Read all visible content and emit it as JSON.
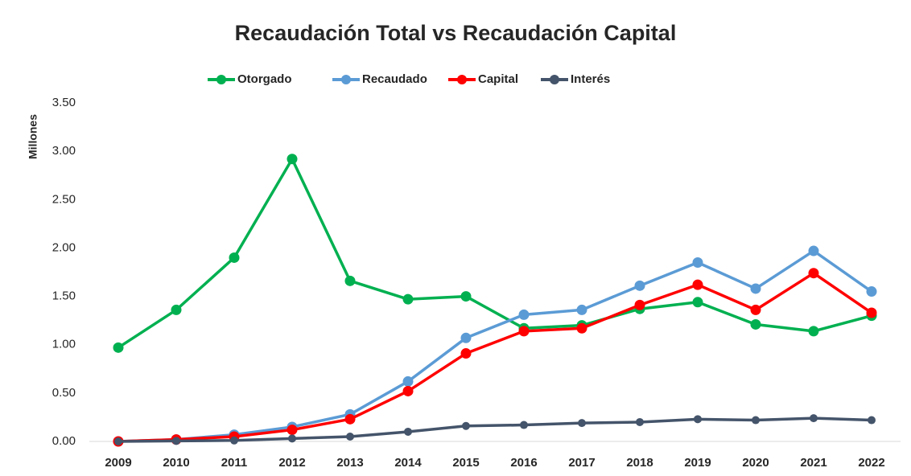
{
  "chart_data": {
    "type": "line",
    "title": "Recaudación Total vs Recaudación Capital",
    "y_label": "Millones",
    "categories": [
      "2009",
      "2010",
      "2011",
      "2012",
      "2013",
      "2014",
      "2015",
      "2016",
      "2017",
      "2018",
      "2019",
      "2020",
      "2021",
      "2022"
    ],
    "series": [
      {
        "name": "Otorgado",
        "color": "#00b050",
        "values": [
          0.97,
          1.36,
          1.9,
          2.92,
          1.66,
          1.47,
          1.5,
          1.17,
          1.2,
          1.37,
          1.44,
          1.21,
          1.14,
          1.3
        ]
      },
      {
        "name": "Recaudado",
        "color": "#5b9bd5",
        "values": [
          0.0,
          0.02,
          0.07,
          0.15,
          0.28,
          0.62,
          1.07,
          1.31,
          1.36,
          1.61,
          1.85,
          1.58,
          1.97,
          1.55
        ]
      },
      {
        "name": "Capital",
        "color": "#ff0000",
        "values": [
          0.0,
          0.02,
          0.05,
          0.12,
          0.23,
          0.52,
          0.91,
          1.14,
          1.17,
          1.41,
          1.62,
          1.36,
          1.74,
          1.33
        ]
      },
      {
        "name": "Interés",
        "color": "#44546a",
        "values": [
          0.0,
          0.005,
          0.01,
          0.03,
          0.05,
          0.1,
          0.16,
          0.17,
          0.19,
          0.2,
          0.23,
          0.22,
          0.24,
          0.22
        ]
      }
    ],
    "ylim": [
      0,
      3.5
    ],
    "yticks": [
      {
        "value": 0,
        "label": "0.00"
      },
      {
        "value": 0.5,
        "label": "0.50"
      },
      {
        "value": 1,
        "label": "1.00"
      },
      {
        "value": 1.5,
        "label": "1.50"
      },
      {
        "value": 2,
        "label": "2.00"
      },
      {
        "value": 2.5,
        "label": "2.50"
      },
      {
        "value": 3,
        "label": "3.00"
      },
      {
        "value": 3.5,
        "label": "3.50"
      }
    ],
    "grid": false,
    "legend": "top"
  }
}
